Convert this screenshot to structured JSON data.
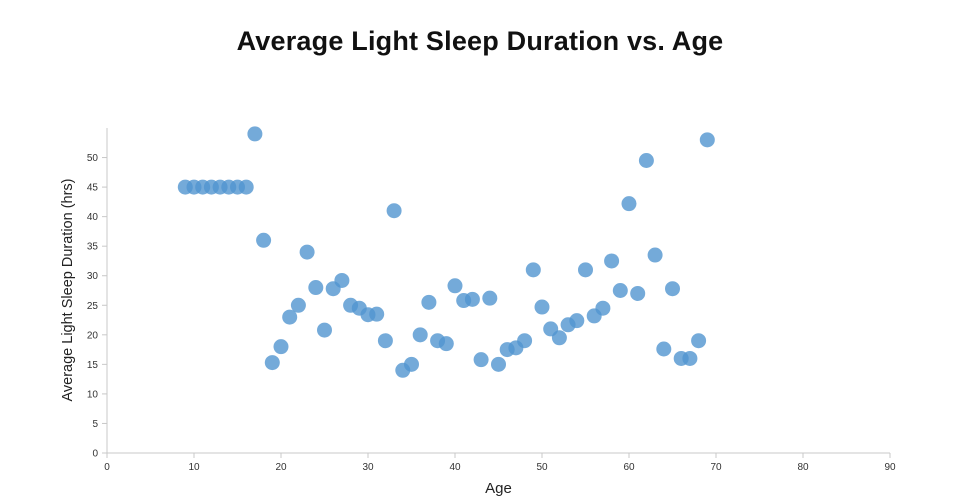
{
  "chart_data": {
    "type": "scatter",
    "title": "Average Light Sleep Duration vs. Age",
    "xlabel": "Age",
    "ylabel": "Average Light Sleep Duration (hrs)",
    "xlim": [
      0,
      90
    ],
    "ylim": [
      0,
      55
    ],
    "x_ticks": [
      0,
      10,
      20,
      30,
      40,
      50,
      60,
      70,
      80,
      90
    ],
    "y_ticks": [
      0,
      5,
      10,
      15,
      20,
      25,
      30,
      35,
      40,
      45,
      50
    ],
    "grid": false,
    "legend": "none",
    "axis_color": "#c8c8c8",
    "tick_label_color": "#333333",
    "marker": {
      "color": "#5195cf",
      "opacity": 0.8,
      "radius": 7.5
    },
    "points": [
      [
        9,
        45
      ],
      [
        10,
        45
      ],
      [
        11,
        45
      ],
      [
        12,
        45
      ],
      [
        13,
        45
      ],
      [
        14,
        45
      ],
      [
        15,
        45
      ],
      [
        16,
        45
      ],
      [
        17,
        54
      ],
      [
        18,
        36
      ],
      [
        19,
        15.3
      ],
      [
        20,
        18
      ],
      [
        21,
        23
      ],
      [
        22,
        25
      ],
      [
        23,
        34
      ],
      [
        24,
        28
      ],
      [
        25,
        20.8
      ],
      [
        26,
        27.8
      ],
      [
        27,
        29.2
      ],
      [
        28,
        25
      ],
      [
        29,
        24.5
      ],
      [
        30,
        23.4
      ],
      [
        31,
        23.5
      ],
      [
        32,
        19
      ],
      [
        33,
        41
      ],
      [
        34,
        14
      ],
      [
        35,
        15
      ],
      [
        36,
        20
      ],
      [
        37,
        25.5
      ],
      [
        38,
        19
      ],
      [
        39,
        18.5
      ],
      [
        40,
        28.3
      ],
      [
        41,
        25.8
      ],
      [
        42,
        26
      ],
      [
        43,
        15.8
      ],
      [
        44,
        26.2
      ],
      [
        45,
        15
      ],
      [
        46,
        17.5
      ],
      [
        47,
        17.8
      ],
      [
        48,
        19
      ],
      [
        49,
        31
      ],
      [
        50,
        24.7
      ],
      [
        51,
        21
      ],
      [
        52,
        19.5
      ],
      [
        53,
        21.7
      ],
      [
        54,
        22.4
      ],
      [
        55,
        31
      ],
      [
        56,
        23.2
      ],
      [
        57,
        24.5
      ],
      [
        58,
        32.5
      ],
      [
        59,
        27.5
      ],
      [
        60,
        42.2
      ],
      [
        61,
        27
      ],
      [
        62,
        49.5
      ],
      [
        63,
        33.5
      ],
      [
        64,
        17.6
      ],
      [
        65,
        27.8
      ],
      [
        66,
        16
      ],
      [
        67,
        16
      ],
      [
        68,
        19
      ],
      [
        69,
        53
      ]
    ]
  }
}
